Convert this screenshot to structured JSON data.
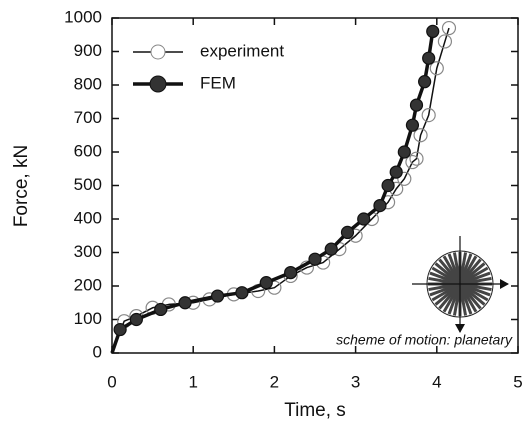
{
  "chart_data": {
    "type": "line",
    "xlabel": "Time, s",
    "ylabel": "Force, kN",
    "annotation": "scheme of motion: planetary",
    "xlim": [
      0,
      5
    ],
    "xticks": [
      0,
      1,
      2,
      3,
      4,
      5
    ],
    "ylim": [
      0,
      1000
    ],
    "yticks": [
      0,
      100,
      200,
      300,
      400,
      500,
      600,
      700,
      800,
      900,
      1000
    ],
    "legend": "upper left",
    "series": [
      {
        "name": "experiment",
        "color": "#111111",
        "marker": "open",
        "x": [
          0,
          0.15,
          0.3,
          0.5,
          0.7,
          1.0,
          1.2,
          1.5,
          1.8,
          2.0,
          2.2,
          2.4,
          2.6,
          2.8,
          3.0,
          3.2,
          3.4,
          3.5,
          3.6,
          3.7,
          3.75,
          3.8,
          3.9,
          4.0,
          4.1,
          4.15
        ],
        "values": [
          0,
          95,
          110,
          135,
          145,
          150,
          160,
          175,
          185,
          195,
          230,
          255,
          270,
          310,
          350,
          400,
          450,
          490,
          520,
          570,
          580,
          650,
          710,
          850,
          930,
          970
        ]
      },
      {
        "name": "FEM",
        "color": "#111111",
        "marker": "filled",
        "x": [
          0,
          0.1,
          0.3,
          0.6,
          0.9,
          1.3,
          1.6,
          1.9,
          2.2,
          2.5,
          2.7,
          2.9,
          3.1,
          3.3,
          3.4,
          3.5,
          3.6,
          3.7,
          3.75,
          3.85,
          3.9,
          3.95
        ],
        "values": [
          0,
          70,
          100,
          130,
          150,
          170,
          180,
          210,
          240,
          280,
          310,
          360,
          400,
          440,
          500,
          540,
          600,
          680,
          740,
          810,
          880,
          960
        ]
      }
    ]
  }
}
